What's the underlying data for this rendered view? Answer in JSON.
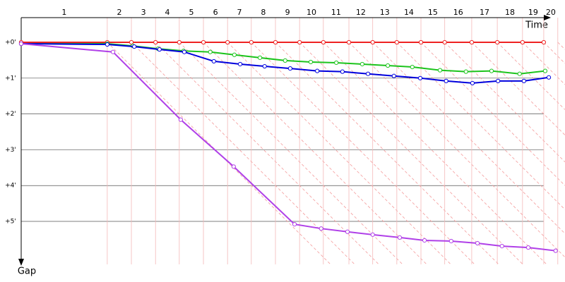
{
  "chart_data": {
    "type": "line",
    "x_label": "Time",
    "y_label": "Gap",
    "xlim": [
      0,
      15.1
    ],
    "ylim": [
      0,
      6.2
    ],
    "yticks": [
      {
        "value": 0,
        "label": "+0'"
      },
      {
        "value": 1,
        "label": "+1'"
      },
      {
        "value": 2,
        "label": "+2'"
      },
      {
        "value": 3,
        "label": "+3'"
      },
      {
        "value": 4,
        "label": "+4'"
      },
      {
        "value": 5,
        "label": "+5'"
      }
    ],
    "laps": {
      "labels": [
        "1",
        "2",
        "3",
        "4",
        "5",
        "6",
        "7",
        "8",
        "9",
        "10",
        "11",
        "12",
        "13",
        "14",
        "15",
        "16",
        "17",
        "18",
        "19",
        "20"
      ],
      "ends": [
        2.39,
        3.06,
        3.73,
        4.39,
        5.06,
        5.73,
        6.39,
        7.06,
        7.73,
        8.39,
        9.1,
        9.76,
        10.43,
        11.1,
        11.76,
        12.51,
        13.22,
        13.92,
        14.51,
        14.9
      ]
    },
    "series": [
      {
        "color": "#ee2222",
        "x": [
          0,
          2.39,
          3.06,
          3.73,
          4.39,
          5.06,
          5.73,
          6.39,
          7.06,
          7.73,
          8.39,
          9.1,
          9.76,
          10.43,
          11.1,
          11.76,
          12.51,
          13.22,
          13.92,
          14.51
        ],
        "values": [
          0,
          0,
          0,
          0,
          0,
          0,
          0,
          0,
          0,
          0,
          0,
          0,
          0,
          0,
          0,
          0,
          0,
          0,
          0,
          0
        ]
      },
      {
        "color": "#1cc41c",
        "x": [
          0,
          2.39,
          3.1,
          3.8,
          4.51,
          5.25,
          5.92,
          6.63,
          7.33,
          8.04,
          8.75,
          9.47,
          10.18,
          10.86,
          11.63,
          12.35,
          13.06,
          13.84,
          14.55
        ],
        "values": [
          0.04,
          0.04,
          0.1,
          0.18,
          0.24,
          0.27,
          0.35,
          0.43,
          0.51,
          0.55,
          0.57,
          0.61,
          0.65,
          0.69,
          0.78,
          0.82,
          0.8,
          0.88,
          0.8
        ]
      },
      {
        "color": "#0000dd",
        "x": [
          0,
          2.39,
          3.14,
          3.84,
          4.53,
          5.35,
          6.08,
          6.76,
          7.47,
          8.22,
          8.92,
          9.63,
          10.35,
          11.08,
          11.8,
          12.53,
          13.24,
          13.96,
          14.65
        ],
        "values": [
          0.04,
          0.06,
          0.12,
          0.2,
          0.27,
          0.53,
          0.61,
          0.67,
          0.73,
          0.8,
          0.82,
          0.88,
          0.94,
          1.0,
          1.08,
          1.14,
          1.08,
          1.08,
          0.98
        ]
      },
      {
        "color": "#b040e8",
        "x": [
          0,
          2.55,
          4.43,
          5.9,
          7.59,
          8.33,
          9.06,
          9.76,
          10.51,
          11.2,
          11.94,
          12.67,
          13.35,
          14.08,
          14.84
        ],
        "values": [
          0.04,
          0.27,
          2.16,
          3.47,
          5.08,
          5.2,
          5.29,
          5.37,
          5.45,
          5.53,
          5.55,
          5.61,
          5.69,
          5.73,
          5.82
        ]
      }
    ]
  }
}
